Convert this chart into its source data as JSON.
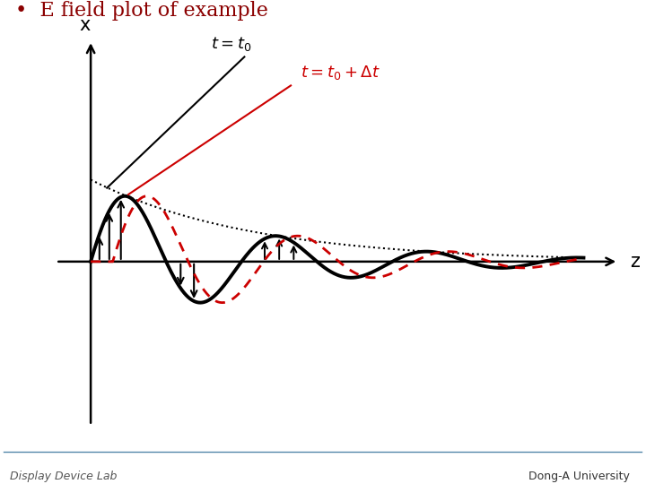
{
  "title": "•  E field plot of example",
  "title_color": "#8B0000",
  "bg_color": "#ffffff",
  "wave_color_black": "#000000",
  "wave_color_red": "#cc0000",
  "z_label": "z",
  "x_label": "x",
  "figwidth": 7.2,
  "figheight": 5.4,
  "dpi": 100,
  "wave_shift": 0.38,
  "decay": 0.36,
  "amplitude": 1.0,
  "wavelength": 2.6,
  "footer_text_left": "Display Device Lab",
  "footer_text_right": "Dong-A University",
  "label_t0_text": "$t=t_0$",
  "label_t0dt_text": "$t=t_0+\\Delta t$",
  "xlim": [
    -1.5,
    9.5
  ],
  "ylim": [
    -2.5,
    3.0
  ]
}
